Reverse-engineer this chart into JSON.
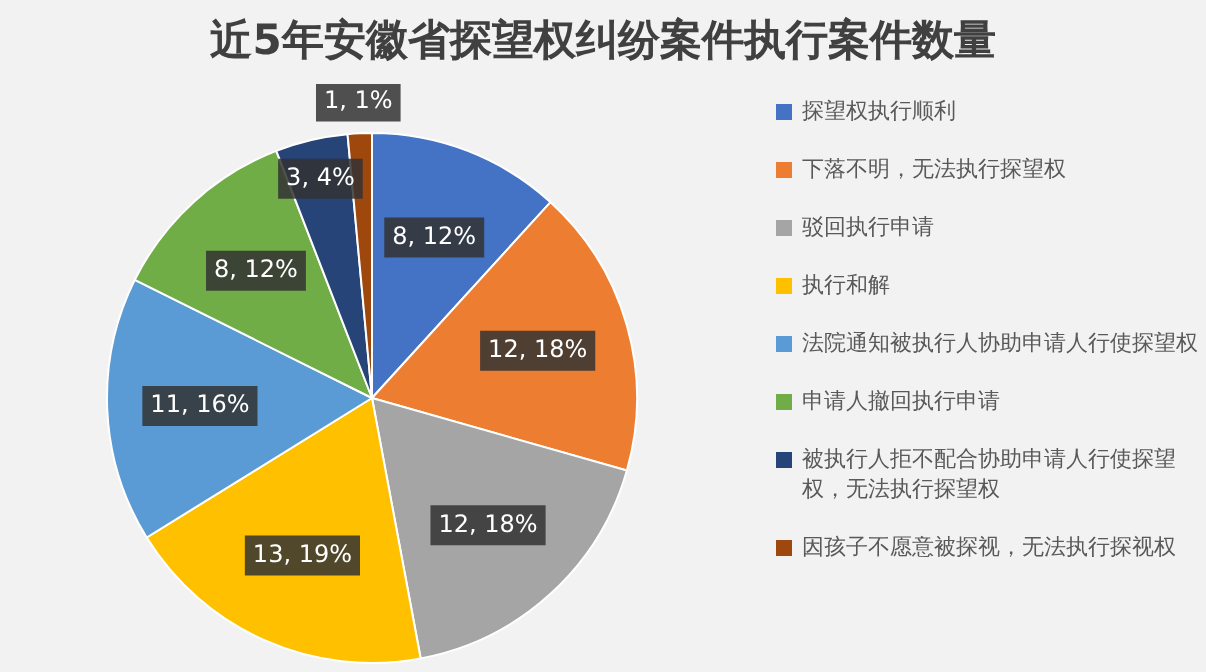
{
  "chart_data": {
    "type": "pie",
    "title": "近5年安徽省探望权纠纷案件执行案件数量",
    "categories": [
      "探望权执行顺利",
      "下落不明，无法执行探望权",
      "驳回执行申请",
      "执行和解",
      "法院通知被执行人协助申请人行使探望权",
      "申请人撤回执行申请",
      "被执行人拒不配合协助申请人行使探望权，无法执行探望权",
      "因孩子不愿意被探视，无法执行探视权"
    ],
    "values": [
      8,
      12,
      12,
      13,
      11,
      8,
      3,
      1
    ],
    "colors": [
      "#4472c4",
      "#ed7d31",
      "#a5a5a5",
      "#ffc000",
      "#5b9bd5",
      "#70ad47",
      "#264478",
      "#9e480e"
    ],
    "value_labels": [
      "8, 12%",
      "12, 18%",
      "12, 18%",
      "13, 19%",
      "11, 16%",
      "8, 12%",
      "3, 4%",
      "1, 1%"
    ],
    "legend": "right"
  }
}
